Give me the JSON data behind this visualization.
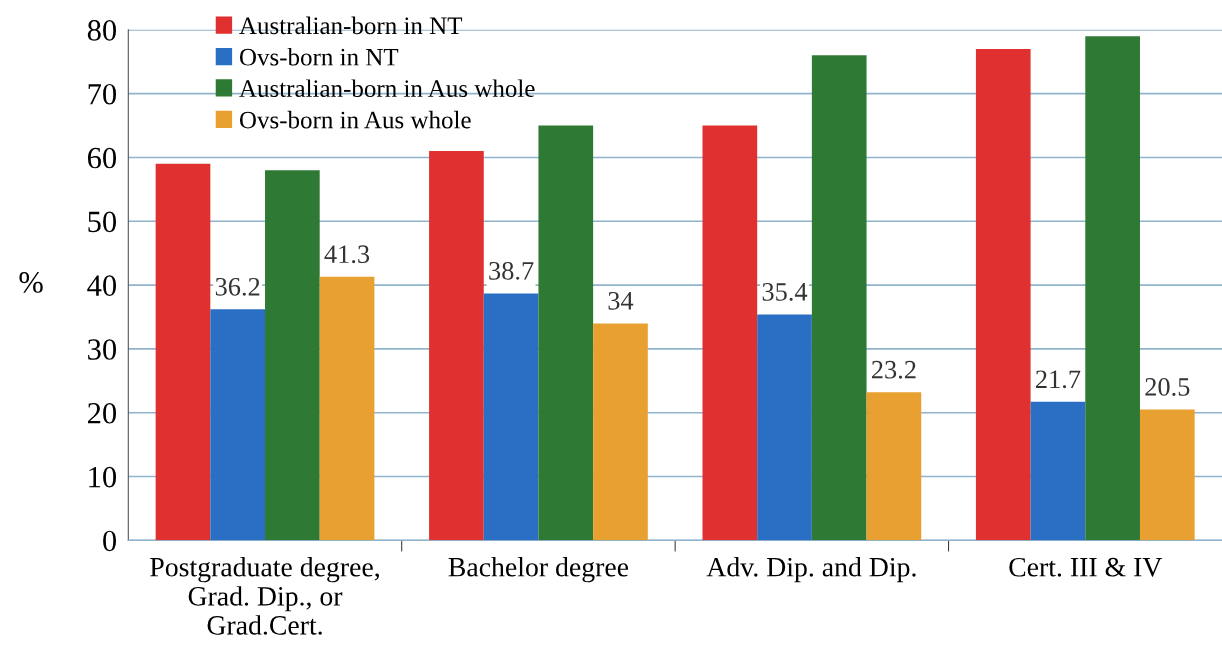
{
  "chart_data": {
    "type": "bar",
    "ylabel": "%",
    "categories": [
      "Postgraduate degree,\nGrad. Dip., or\nGrad.Cert.",
      "Bachelor degree",
      "Adv. Dip. and Dip.",
      "Cert. III & IV"
    ],
    "series": [
      {
        "name": "Australian-born in NT",
        "color": "#e03030",
        "values": [
          59,
          61,
          65,
          77
        ]
      },
      {
        "name": "Ovs-born in NT",
        "color": "#2a6fc4",
        "values": [
          36.2,
          38.7,
          35.4,
          21.7
        ],
        "value_labels": [
          "36.2",
          "38.7",
          "35.4",
          "21.7"
        ]
      },
      {
        "name": "Australian-born in Aus whole",
        "color": "#2e7a35",
        "values": [
          58,
          65,
          76,
          79
        ]
      },
      {
        "name": "Ovs-born in Aus whole",
        "color": "#e8a030",
        "values": [
          41.3,
          34,
          23.2,
          20.5
        ],
        "value_labels": [
          "41.3",
          "34",
          "23.2",
          "20.5"
        ]
      }
    ],
    "ylim": [
      0,
      80
    ],
    "yticks": [
      0,
      10,
      20,
      30,
      40,
      50,
      60,
      70,
      80
    ],
    "grid": "y",
    "legend": "top left"
  }
}
